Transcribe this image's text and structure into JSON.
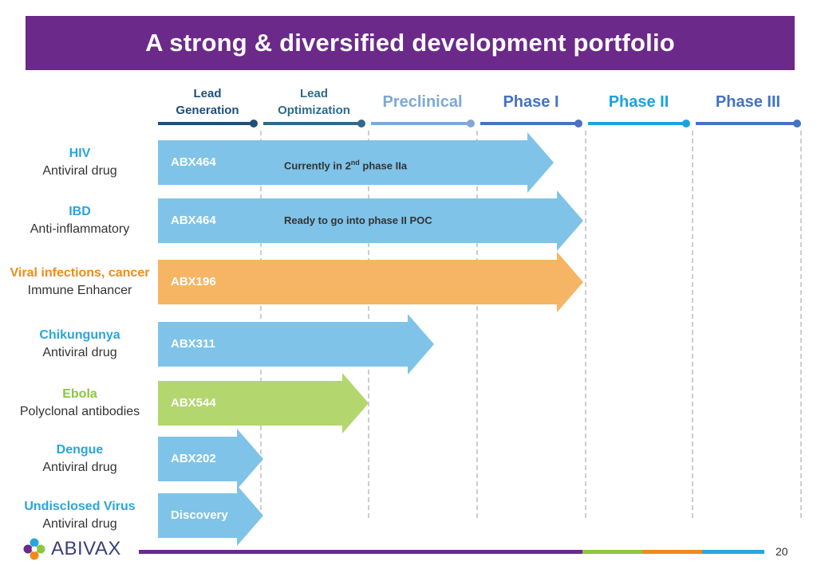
{
  "title": "A strong & diversified development portfolio",
  "colors": {
    "banner": "#6b2a8a",
    "blue_arrow": "#7fc3e8",
    "orange_arrow": "#f5b565",
    "green_arrow": "#b3d66e",
    "blue_label": "#2aa5dc",
    "orange_label": "#f08a1c",
    "green_label": "#8cc63f"
  },
  "phases": [
    {
      "label": "Lead\nGeneration",
      "color": "#1f4e79"
    },
    {
      "label": "Lead\nOptimization",
      "color": "#2e6b8a"
    },
    {
      "label": "Preclinical",
      "color": "#7fa8d8"
    },
    {
      "label": "Phase I",
      "color": "#4472c4"
    },
    {
      "label": "Phase II",
      "color": "#1aa3e0"
    },
    {
      "label": "Phase III",
      "color": "#4472c4"
    }
  ],
  "programs": [
    {
      "title": "HIV",
      "subtitle": "Antiviral drug",
      "code": "ABX464",
      "note": "Currently in 2nd phase IIa",
      "reach": "Phase II",
      "color": "blue"
    },
    {
      "title": "IBD",
      "subtitle": "Anti-inflammatory",
      "code": "ABX464",
      "note": "Ready to go into phase II POC",
      "reach": "Phase I",
      "color": "blue"
    },
    {
      "title": "Viral infections, cancer",
      "subtitle": "Immune Enhancer",
      "code": "ABX196",
      "note": "",
      "reach": "Phase I",
      "color": "orange"
    },
    {
      "title": "Chikungunya",
      "subtitle": "Antiviral drug",
      "code": "ABX311",
      "note": "",
      "reach": "Preclinical",
      "color": "blue"
    },
    {
      "title": "Ebola",
      "subtitle": "Polyclonal antibodies",
      "code": "ABX544",
      "note": "",
      "reach": "Lead Optimization",
      "color": "green"
    },
    {
      "title": "Dengue",
      "subtitle": "Antiviral drug",
      "code": "ABX202",
      "note": "",
      "reach": "Lead Generation",
      "color": "blue"
    },
    {
      "title": "Undisclosed Virus",
      "subtitle": "Antiviral drug",
      "code": "Discovery",
      "note": "",
      "reach": "Lead Generation",
      "color": "blue"
    }
  ],
  "footer": {
    "logo_text": "ABIVAX",
    "page_number": "20",
    "bar_colors": [
      "#6b2a8a",
      "#8cc63f",
      "#f08a1c",
      "#2aa5dc"
    ]
  }
}
